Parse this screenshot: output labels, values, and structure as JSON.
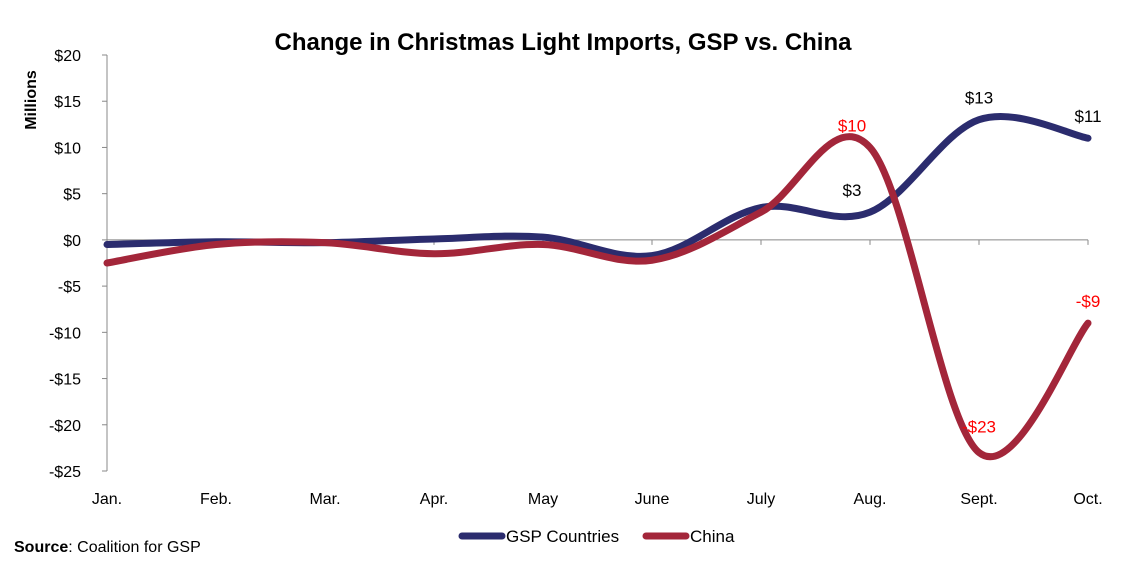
{
  "chart_data": {
    "type": "line",
    "title": "Change in Christmas Light Imports, GSP vs. China",
    "ylabel": "Millions",
    "xlabel": "",
    "categories": [
      "Jan.",
      "Feb.",
      "Mar.",
      "Apr.",
      "May",
      "June",
      "July",
      "Aug.",
      "Sept.",
      "Oct."
    ],
    "ylim": [
      -25,
      20
    ],
    "yticks": [
      20,
      15,
      10,
      5,
      0,
      -5,
      -10,
      -15,
      -20,
      -25
    ],
    "ytick_labels": [
      "$20",
      "$15",
      "$10",
      "$5",
      "$0",
      "-$5",
      "-$10",
      "-$15",
      "-$20",
      "-$25"
    ],
    "grid": false,
    "smooth": true,
    "legend_position": "bottom",
    "series": [
      {
        "name": "GSP Countries",
        "color": "#2b2c6e",
        "values": [
          -0.5,
          -0.2,
          -0.3,
          0.1,
          0.3,
          -1.7,
          3.5,
          3,
          13,
          11
        ],
        "data_labels": {
          "7": "$3",
          "8": "$13",
          "9": "$11"
        },
        "label_color": "#000000"
      },
      {
        "name": "China",
        "color": "#a3263a",
        "values": [
          -2.5,
          -0.5,
          -0.3,
          -1.5,
          -0.5,
          -2.2,
          3,
          10,
          -23,
          -9
        ],
        "data_labels": {
          "7": "$10",
          "8": "-$23",
          "9": "-$9"
        },
        "label_color": "#ff0000"
      }
    ]
  },
  "source": {
    "label": "Source",
    "text": ": Coalition for GSP"
  }
}
